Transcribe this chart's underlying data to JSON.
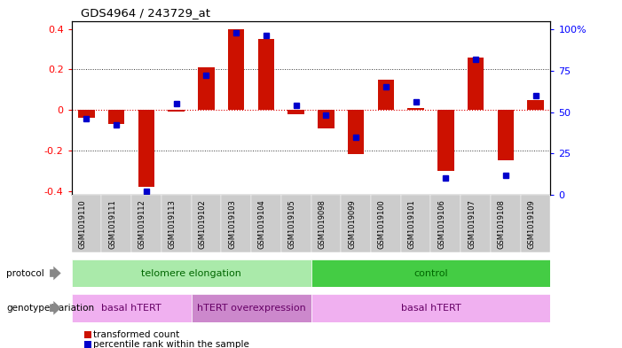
{
  "title": "GDS4964 / 243729_at",
  "samples": [
    "GSM1019110",
    "GSM1019111",
    "GSM1019112",
    "GSM1019113",
    "GSM1019102",
    "GSM1019103",
    "GSM1019104",
    "GSM1019105",
    "GSM1019098",
    "GSM1019099",
    "GSM1019100",
    "GSM1019101",
    "GSM1019106",
    "GSM1019107",
    "GSM1019108",
    "GSM1019109"
  ],
  "transformed_count": [
    -0.04,
    -0.07,
    -0.38,
    -0.01,
    0.21,
    0.4,
    0.35,
    -0.02,
    -0.09,
    -0.22,
    0.15,
    0.01,
    -0.3,
    0.26,
    -0.25,
    0.05
  ],
  "percentile_rank": [
    46,
    42,
    2,
    55,
    72,
    98,
    96,
    54,
    48,
    35,
    65,
    56,
    10,
    82,
    12,
    60
  ],
  "protocol_groups": [
    {
      "label": "telomere elongation",
      "start": 0,
      "end": 8,
      "color": "#aaeaaa"
    },
    {
      "label": "control",
      "start": 8,
      "end": 16,
      "color": "#44cc44"
    }
  ],
  "genotype_groups": [
    {
      "label": "basal hTERT",
      "start": 0,
      "end": 4,
      "color": "#f0b0f0"
    },
    {
      "label": "hTERT overexpression",
      "start": 4,
      "end": 8,
      "color": "#cc88cc"
    },
    {
      "label": "basal hTERT",
      "start": 8,
      "end": 16,
      "color": "#f0b0f0"
    }
  ],
  "bar_color": "#cc1100",
  "dot_color": "#0000cc",
  "ylim": [
    -0.42,
    0.44
  ],
  "y2lim": [
    0,
    105
  ],
  "yticks": [
    -0.4,
    -0.2,
    0.0,
    0.2,
    0.4
  ],
  "ytick_labels": [
    "-0.4",
    "-0.2",
    "0",
    "0.2",
    "0.4"
  ],
  "y2ticks": [
    0,
    25,
    50,
    75,
    100
  ],
  "y2tick_labels": [
    "0",
    "25",
    "50",
    "75",
    "100%"
  ]
}
